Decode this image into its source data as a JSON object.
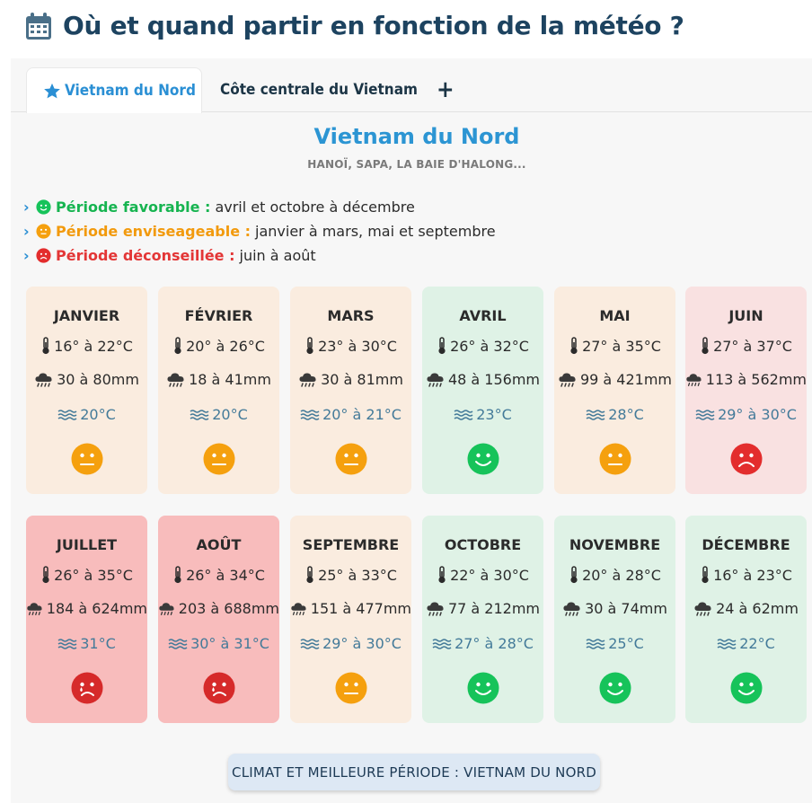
{
  "page": {
    "title": "Où et quand partir en fonction de la météo ?",
    "icon": "calendar-icon"
  },
  "tabs": [
    {
      "label": "Vietnam du Nord",
      "icon": "star-icon",
      "active": true
    },
    {
      "label": "Côte centrale du Vietnam",
      "active": false
    },
    {
      "label": "+",
      "icon": "plus-icon"
    }
  ],
  "region": {
    "title": "Vietnam du Nord",
    "subtitle": "HANOÏ, SAPA, LA BAIE D'HALONG..."
  },
  "periods": [
    {
      "label": "Période favorable :",
      "value": "avril et octobre à décembre",
      "mood": "good"
    },
    {
      "label": "Période enviseageable :",
      "value": "janvier à mars, mai et septembre",
      "mood": "mid"
    },
    {
      "label": "Période déconseillée :",
      "value": "juin à août",
      "mood": "bad"
    }
  ],
  "months": [
    {
      "name": "JANVIER",
      "temp": "16° à 22°C",
      "rain": "30 à 80mm",
      "sea": "20°C",
      "mood": "mid"
    },
    {
      "name": "FÉVRIER",
      "temp": "20° à 26°C",
      "rain": "18 à 41mm",
      "sea": "20°C",
      "mood": "mid"
    },
    {
      "name": "MARS",
      "temp": "23° à 30°C",
      "rain": "30 à 81mm",
      "sea": "20° à 21°C",
      "mood": "mid"
    },
    {
      "name": "AVRIL",
      "temp": "26° à 32°C",
      "rain": "48 à 156mm",
      "sea": "23°C",
      "mood": "good"
    },
    {
      "name": "MAI",
      "temp": "27° à 35°C",
      "rain": "99 à 421mm",
      "sea": "28°C",
      "mood": "mid"
    },
    {
      "name": "JUIN",
      "temp": "27° à 37°C",
      "rain": "113 à 562mm",
      "sea": "29° à 30°C",
      "mood": "bad"
    },
    {
      "name": "JUILLET",
      "temp": "26° à 35°C",
      "rain": "184 à 624mm",
      "sea": "31°C",
      "mood": "worse"
    },
    {
      "name": "AOÛT",
      "temp": "26° à 34°C",
      "rain": "203 à 688mm",
      "sea": "30° à 31°C",
      "mood": "worse"
    },
    {
      "name": "SEPTEMBRE",
      "temp": "25° à 33°C",
      "rain": "151 à 477mm",
      "sea": "29° à 30°C",
      "mood": "mid"
    },
    {
      "name": "OCTOBRE",
      "temp": "22° à 30°C",
      "rain": "77 à 212mm",
      "sea": "27° à 28°C",
      "mood": "good"
    },
    {
      "name": "NOVEMBRE",
      "temp": "20° à 28°C",
      "rain": "30 à 74mm",
      "sea": "25°C",
      "mood": "good"
    },
    {
      "name": "DÉCEMBRE",
      "temp": "16° à 23°C",
      "rain": "24 à 62mm",
      "sea": "22°C",
      "mood": "good"
    }
  ],
  "footer": {
    "button_label": "CLIMAT ET MEILLEURE PÉRIODE : VIETNAM DU NORD"
  },
  "colors": {
    "good": "#16c35a",
    "mid": "#f5a00e",
    "bad": "#e32d2d",
    "worse": "#d62a2a",
    "accent": "#2a8fd4"
  }
}
